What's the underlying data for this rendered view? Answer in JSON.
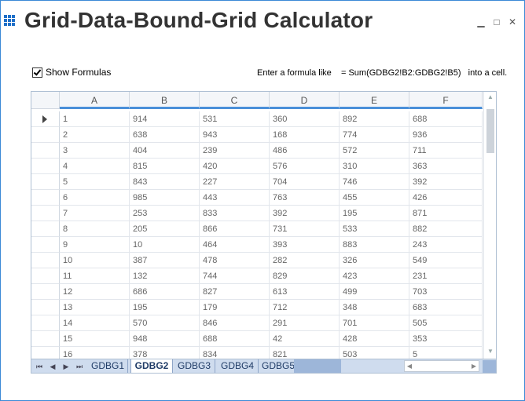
{
  "window": {
    "title": "Grid-Data-Bound-Grid Calculator",
    "minimize_glyph": "▁",
    "maximize_glyph": "□",
    "close_glyph": "✕",
    "accent": "#1e6fc8"
  },
  "options": {
    "show_formulas_label": "Show Formulas",
    "show_formulas_checked": true,
    "hint_text": "Enter a formula like    = Sum(GDBG2!B2:GDBG2!B5)   into a cell."
  },
  "grid": {
    "columns": [
      "A",
      "B",
      "C",
      "D",
      "E",
      "F"
    ],
    "rows": [
      [
        "1",
        "914",
        "531",
        "360",
        "892",
        "688"
      ],
      [
        "2",
        "638",
        "943",
        "168",
        "774",
        "936"
      ],
      [
        "3",
        "404",
        "239",
        "486",
        "572",
        "711"
      ],
      [
        "4",
        "815",
        "420",
        "576",
        "310",
        "363"
      ],
      [
        "5",
        "843",
        "227",
        "704",
        "746",
        "392"
      ],
      [
        "6",
        "985",
        "443",
        "763",
        "455",
        "426"
      ],
      [
        "7",
        "253",
        "833",
        "392",
        "195",
        "871"
      ],
      [
        "8",
        "205",
        "866",
        "731",
        "533",
        "882"
      ],
      [
        "9",
        "10",
        "464",
        "393",
        "883",
        "243"
      ],
      [
        "10",
        "387",
        "478",
        "282",
        "326",
        "549"
      ],
      [
        "11",
        "132",
        "744",
        "829",
        "423",
        "231"
      ],
      [
        "12",
        "686",
        "827",
        "613",
        "499",
        "703"
      ],
      [
        "13",
        "195",
        "179",
        "712",
        "348",
        "683"
      ],
      [
        "14",
        "570",
        "846",
        "291",
        "701",
        "505"
      ],
      [
        "15",
        "948",
        "688",
        "42",
        "428",
        "353"
      ],
      [
        "16",
        "378",
        "834",
        "821",
        "503",
        "5"
      ]
    ],
    "current_row_index": 0
  },
  "tabs": {
    "nav": [
      "⏮",
      "◀",
      "▶",
      "⏭"
    ],
    "items": [
      "GDBG1",
      "GDBG2",
      "GDBG3",
      "GDBG4",
      "GDBG5"
    ],
    "active_index": 1
  }
}
